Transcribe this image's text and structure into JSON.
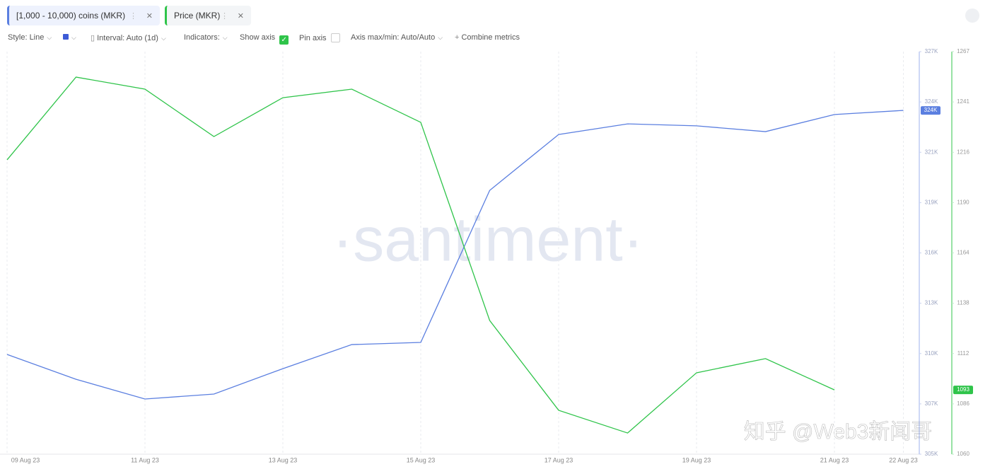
{
  "toolbar": {
    "style": "Style: Line",
    "interval": "Interval: Auto (1d)",
    "indicators": "Indicators:",
    "show_axis": "Show axis",
    "pin_axis": "Pin axis",
    "axis_minmax": "Axis max/min: Auto/Auto",
    "combine": "Combine metrics"
  },
  "watermark": {
    "brand": "·santiment·",
    "credit": "知乎 @Web3新闻哥"
  },
  "chart_data": {
    "type": "line",
    "categories": [
      "09 Aug 23",
      null,
      "11 Aug 23",
      null,
      "13 Aug 23",
      null,
      "15 Aug 23",
      null,
      "17 Aug 23",
      null,
      "19 Aug 23",
      null,
      "21 Aug 23",
      "22 Aug 23"
    ],
    "series": [
      {
        "name": "[1,000 - 10,000) coins (MKR)",
        "color": "#5b7fe0",
        "values": [
          310150,
          308770,
          307670,
          307945,
          309360,
          310700,
          310820,
          319280,
          322390,
          322980,
          322870,
          322550,
          323500,
          323730
        ],
        "value_labels": [
          null,
          null,
          null,
          null,
          null,
          null,
          null,
          null,
          null,
          null,
          null,
          null,
          null,
          "324K"
        ]
      },
      {
        "name": "Price (MKR)",
        "color": "#2fc44a",
        "axis": "y2",
        "values": [
          1211.6,
          1254.2,
          1248.0,
          1223.6,
          1243.6,
          1248.0,
          1230.9,
          1128.9,
          1082.7,
          1071.0,
          1102.0,
          1109.3,
          1093.2,
          null
        ],
        "value_labels": [
          null,
          null,
          null,
          null,
          null,
          null,
          null,
          null,
          null,
          null,
          null,
          null,
          "1093",
          null
        ]
      }
    ],
    "ylim": [
      304600,
      327000
    ],
    "yticks": [
      {
        "value": 304600,
        "label": "305K"
      },
      {
        "value": 307400,
        "label": "307K"
      },
      {
        "value": 310200,
        "label": "310K"
      },
      {
        "value": 313000,
        "label": "313K"
      },
      {
        "value": 315800,
        "label": "316K"
      },
      {
        "value": 318600,
        "label": "319K"
      },
      {
        "value": 321400,
        "label": "321K"
      },
      {
        "value": 324200,
        "label": "324K"
      },
      {
        "value": 327000,
        "label": "327K"
      }
    ],
    "y2lim": [
      1060.1,
      1267.3
    ],
    "y2ticks": [
      {
        "value": 1060.1,
        "label": "1060"
      },
      {
        "value": 1086.0,
        "label": "1086"
      },
      {
        "value": 1111.9,
        "label": "1112"
      },
      {
        "value": 1137.8,
        "label": "1138"
      },
      {
        "value": 1163.7,
        "label": "1164"
      },
      {
        "value": 1189.6,
        "label": "1190"
      },
      {
        "value": 1215.5,
        "label": "1216"
      },
      {
        "value": 1241.4,
        "label": "1241"
      },
      {
        "value": 1267.3,
        "label": "1267"
      }
    ],
    "grid": true
  }
}
